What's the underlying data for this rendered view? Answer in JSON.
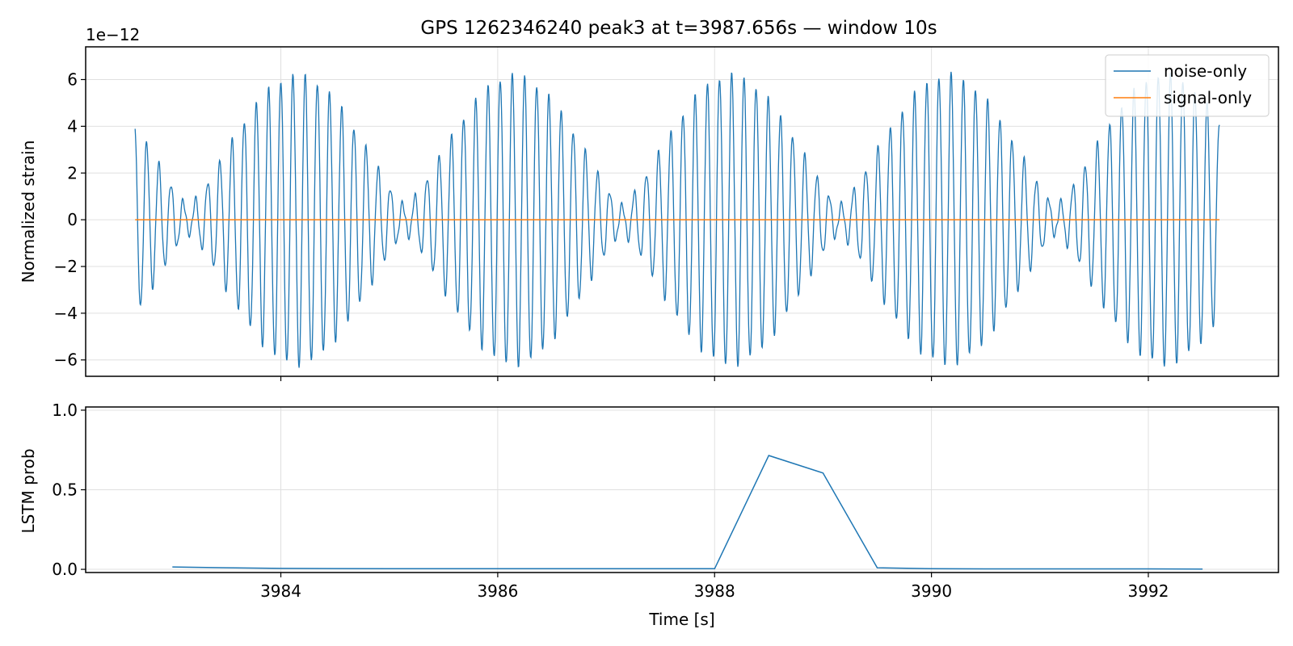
{
  "title": "GPS 1262346240 peak3 at t=3987.656s — window 10s",
  "colors": {
    "noise": "#1f77b4",
    "signal": "#ff7f0e",
    "lstm": "#1f77b4",
    "grid": "#e0e0e0"
  },
  "chart_data": [
    {
      "type": "line",
      "ylabel": "Normalized strain",
      "offset_text": "1e−12",
      "xlim": [
        3982.2,
        3993.2
      ],
      "ylim": [
        -6.7,
        7.4
      ],
      "ytick_values": [
        -6,
        -4,
        -2,
        0,
        2,
        4,
        6
      ],
      "ytick_labels": [
        "−6",
        "−4",
        "−2",
        "0",
        "2",
        "4",
        "6"
      ],
      "xtick_values": [
        3984,
        3986,
        3988,
        3990,
        3992
      ],
      "grid": true,
      "legend_position": "top-right",
      "series": [
        {
          "name": "noise-only",
          "style": "oscillation",
          "x_start": 3982.656,
          "x_end": 3992.656,
          "carrier_period_s": 0.1124,
          "beat_period_s": 2.0,
          "first_beat_peak_s": 3984.15,
          "envelope_peak": 6.2,
          "envelope_floor": 0.6
        },
        {
          "name": "signal-only",
          "x": [
            3982.656,
            3992.656
          ],
          "y": [
            0,
            0
          ]
        }
      ]
    },
    {
      "type": "line",
      "ylabel": "LSTM prob",
      "xlabel": "Time [s]",
      "xlim": [
        3982.2,
        3993.2
      ],
      "ylim": [
        -0.02,
        1.02
      ],
      "ytick_values": [
        0.0,
        0.5,
        1.0
      ],
      "ytick_labels": [
        "0.0",
        "0.5",
        "1.0"
      ],
      "xtick_values": [
        3984,
        3986,
        3988,
        3990,
        3992
      ],
      "xtick_labels": [
        "3984",
        "3986",
        "3988",
        "3990",
        "3992"
      ],
      "grid": true,
      "series": [
        {
          "name": "",
          "x": [
            3983.0,
            3983.5,
            3984.0,
            3984.5,
            3985.0,
            3985.5,
            3986.0,
            3986.5,
            3987.0,
            3987.5,
            3988.0,
            3988.5,
            3989.0,
            3989.5,
            3990.0,
            3990.5,
            3991.0,
            3991.5,
            3992.0,
            3992.5
          ],
          "y": [
            0.015,
            0.01,
            0.006,
            0.005,
            0.004,
            0.004,
            0.004,
            0.004,
            0.004,
            0.004,
            0.004,
            0.715,
            0.605,
            0.01,
            0.004,
            0.003,
            0.003,
            0.003,
            0.003,
            0.002
          ]
        }
      ]
    }
  ]
}
